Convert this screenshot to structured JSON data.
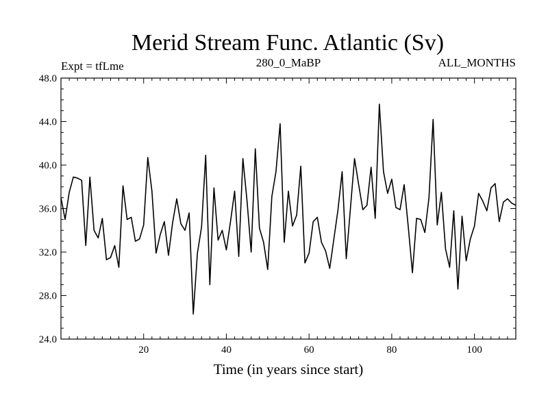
{
  "chart_data": {
    "type": "line",
    "title": "Merid Stream Func. Atlantic (Sv)",
    "subtitle_left": "Expt = tfLme",
    "subtitle_center": "280_0_MaBP",
    "subtitle_right": "ALL_MONTHS",
    "xlabel": "Time (in years since start)",
    "ylabel": "",
    "xlim": [
      0,
      110
    ],
    "ylim": [
      24.0,
      48.0
    ],
    "x_ticks": [
      20,
      40,
      60,
      80,
      100
    ],
    "x_tick_labels": [
      "20",
      "40",
      "60",
      "80",
      "100"
    ],
    "y_ticks": [
      24,
      28,
      32,
      36,
      40,
      44,
      48
    ],
    "y_tick_labels": [
      "24.0",
      "28.0",
      "32.0",
      "36.0",
      "40.0",
      "44.0",
      "48.0"
    ],
    "color": "#000000",
    "series": [
      {
        "name": "Merid Stream Func. Atlantic",
        "x": [
          0,
          1,
          2,
          3,
          4,
          5,
          6,
          7,
          8,
          9,
          10,
          11,
          12,
          13,
          14,
          15,
          16,
          17,
          18,
          19,
          20,
          21,
          22,
          23,
          24,
          25,
          26,
          27,
          28,
          29,
          30,
          31,
          32,
          33,
          34,
          35,
          36,
          37,
          38,
          39,
          40,
          41,
          42,
          43,
          44,
          45,
          46,
          47,
          48,
          49,
          50,
          51,
          52,
          53,
          54,
          55,
          56,
          57,
          58,
          59,
          60,
          61,
          62,
          63,
          64,
          65,
          66,
          67,
          68,
          69,
          70,
          71,
          72,
          73,
          74,
          75,
          76,
          77,
          78,
          79,
          80,
          81,
          82,
          83,
          84,
          85,
          86,
          87,
          88,
          89,
          90,
          91,
          92,
          93,
          94,
          95,
          96,
          97,
          98,
          99,
          100,
          101,
          102,
          103,
          104,
          105,
          106,
          107,
          108,
          109,
          110
        ],
        "values": [
          37.0,
          35.0,
          37.5,
          38.9,
          38.8,
          38.6,
          32.6,
          38.9,
          34.0,
          33.3,
          35.1,
          31.3,
          31.5,
          32.6,
          30.6,
          38.1,
          35.0,
          35.2,
          33.0,
          33.2,
          34.5,
          40.7,
          37.6,
          31.9,
          33.6,
          34.8,
          31.7,
          34.7,
          36.9,
          34.6,
          34.0,
          35.6,
          26.3,
          31.9,
          34.3,
          40.9,
          29.0,
          37.9,
          33.1,
          34.0,
          32.2,
          34.8,
          37.6,
          31.6,
          40.6,
          36.7,
          32.0,
          41.5,
          34.2,
          32.9,
          30.4,
          37.1,
          39.4,
          43.8,
          32.9,
          37.6,
          34.4,
          35.4,
          39.9,
          31.0,
          31.9,
          34.8,
          35.2,
          32.9,
          32.1,
          30.5,
          33.2,
          35.9,
          39.4,
          31.4,
          36.0,
          40.6,
          38.2,
          35.9,
          36.3,
          39.8,
          35.1,
          45.6,
          39.4,
          37.4,
          38.7,
          36.1,
          35.9,
          38.2,
          34.3,
          30.1,
          35.1,
          35.0,
          33.8,
          37.0,
          44.2,
          34.5,
          37.5,
          32.3,
          30.6,
          35.8,
          28.6,
          35.3,
          31.2,
          33.2,
          34.4,
          37.4,
          36.7,
          35.8,
          37.9,
          38.3,
          34.8,
          36.6,
          36.9,
          36.5,
          36.3
        ]
      }
    ]
  }
}
